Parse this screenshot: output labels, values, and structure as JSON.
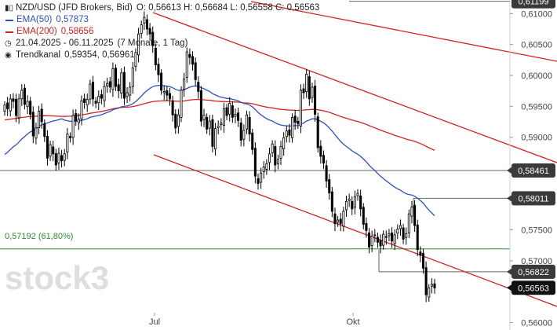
{
  "header": {
    "title": "NZD/USD (JFD Brokers, Bid)",
    "ohlc": "O: 0,56613  H: 0,56684  L: 0,56558  C: 0,56563",
    "ema50_label": "EMA(50)",
    "ema50_value": "0,57873",
    "ema200_label": "EMA(200)",
    "ema200_value": "0,58656",
    "date_range": "21.04.2025 - 06.11.2025",
    "period": "(7 Monate, 1 Tag)",
    "channel_label": "Trendkanal",
    "channel_values": "0,59354, 0,56961"
  },
  "watermark": "stock3",
  "fib_label": "0,57192 (61,80%)",
  "colors": {
    "ema50": "#2d4fc6",
    "ema200": "#d42020",
    "channel": "#d42020",
    "fib": "#2e8b2e",
    "hline": "#666666",
    "label_bg": "#3a3a3a",
    "label_bg_last": "#111111"
  },
  "chart_data": {
    "type": "candlestick",
    "instrument": "NZD/USD",
    "yaxis": {
      "ticks": [
        "0,56000",
        "0,56500",
        "0,57000",
        "0,57500",
        "0,58000",
        "0,58500",
        "0,59000",
        "0,59500",
        "0,60000",
        "0,60500",
        "0,61000"
      ],
      "range": [
        0.5588,
        0.6122
      ]
    },
    "xaxis": {
      "ticks": [
        "Jul",
        "Okt"
      ]
    },
    "price_labels": [
      "0,61199",
      "0,58461",
      "0,58011",
      "0,56822",
      "0,56563"
    ],
    "horizontal_levels": [
      0.61199,
      0.58461,
      0.58011,
      0.56822
    ],
    "fib_level": 0.57192,
    "last_price": 0.56563,
    "closes": [
      0.5952,
      0.5946,
      0.5962,
      0.5958,
      0.5935,
      0.5962,
      0.5976,
      0.5953,
      0.5958,
      0.5937,
      0.5902,
      0.5915,
      0.5942,
      0.5925,
      0.5901,
      0.5866,
      0.5888,
      0.5873,
      0.5855,
      0.5874,
      0.5862,
      0.5873,
      0.5905,
      0.5899,
      0.5935,
      0.5927,
      0.5929,
      0.5959,
      0.5956,
      0.5961,
      0.5986,
      0.5962,
      0.5955,
      0.5966,
      0.5963,
      0.5982,
      0.5987,
      0.5981,
      0.6011,
      0.5982,
      0.5975,
      0.6004,
      0.5963,
      0.5972,
      0.5981,
      0.6012,
      0.6037,
      0.6067,
      0.6082,
      0.6094,
      0.6075,
      0.6067,
      0.6048,
      0.6017,
      0.6001,
      0.5976,
      0.5974,
      0.5968,
      0.5962,
      0.5936,
      0.5915,
      0.5936,
      0.5976,
      0.5994,
      0.6038,
      0.6029,
      0.6018,
      0.5993,
      0.5974,
      0.5926,
      0.5936,
      0.5913,
      0.5926,
      0.5885,
      0.5914,
      0.5918,
      0.5923,
      0.5946,
      0.5935,
      0.5955,
      0.5932,
      0.5937,
      0.5927,
      0.5895,
      0.5911,
      0.5936,
      0.5905,
      0.588,
      0.5837,
      0.5825,
      0.5842,
      0.5852,
      0.5857,
      0.5873,
      0.5889,
      0.5855,
      0.5864,
      0.5885,
      0.5899,
      0.591,
      0.5903,
      0.5932,
      0.5924,
      0.5922,
      0.5976,
      0.5972,
      0.6002,
      0.5962,
      0.5981,
      0.5937,
      0.5883,
      0.5869,
      0.5858,
      0.5829,
      0.581,
      0.578,
      0.576,
      0.5766,
      0.576,
      0.578,
      0.5796,
      0.58,
      0.5784,
      0.5804,
      0.5809,
      0.5784,
      0.5759,
      0.5749,
      0.5722,
      0.574,
      0.5742,
      0.573,
      0.5724,
      0.5743,
      0.5738,
      0.5744,
      0.5732,
      0.5742,
      0.5751,
      0.5757,
      0.5735,
      0.5744,
      0.5776,
      0.5787,
      0.5757,
      0.5718,
      0.5709,
      0.5688,
      0.5645,
      0.5656,
      0.5662,
      0.5656
    ]
  }
}
